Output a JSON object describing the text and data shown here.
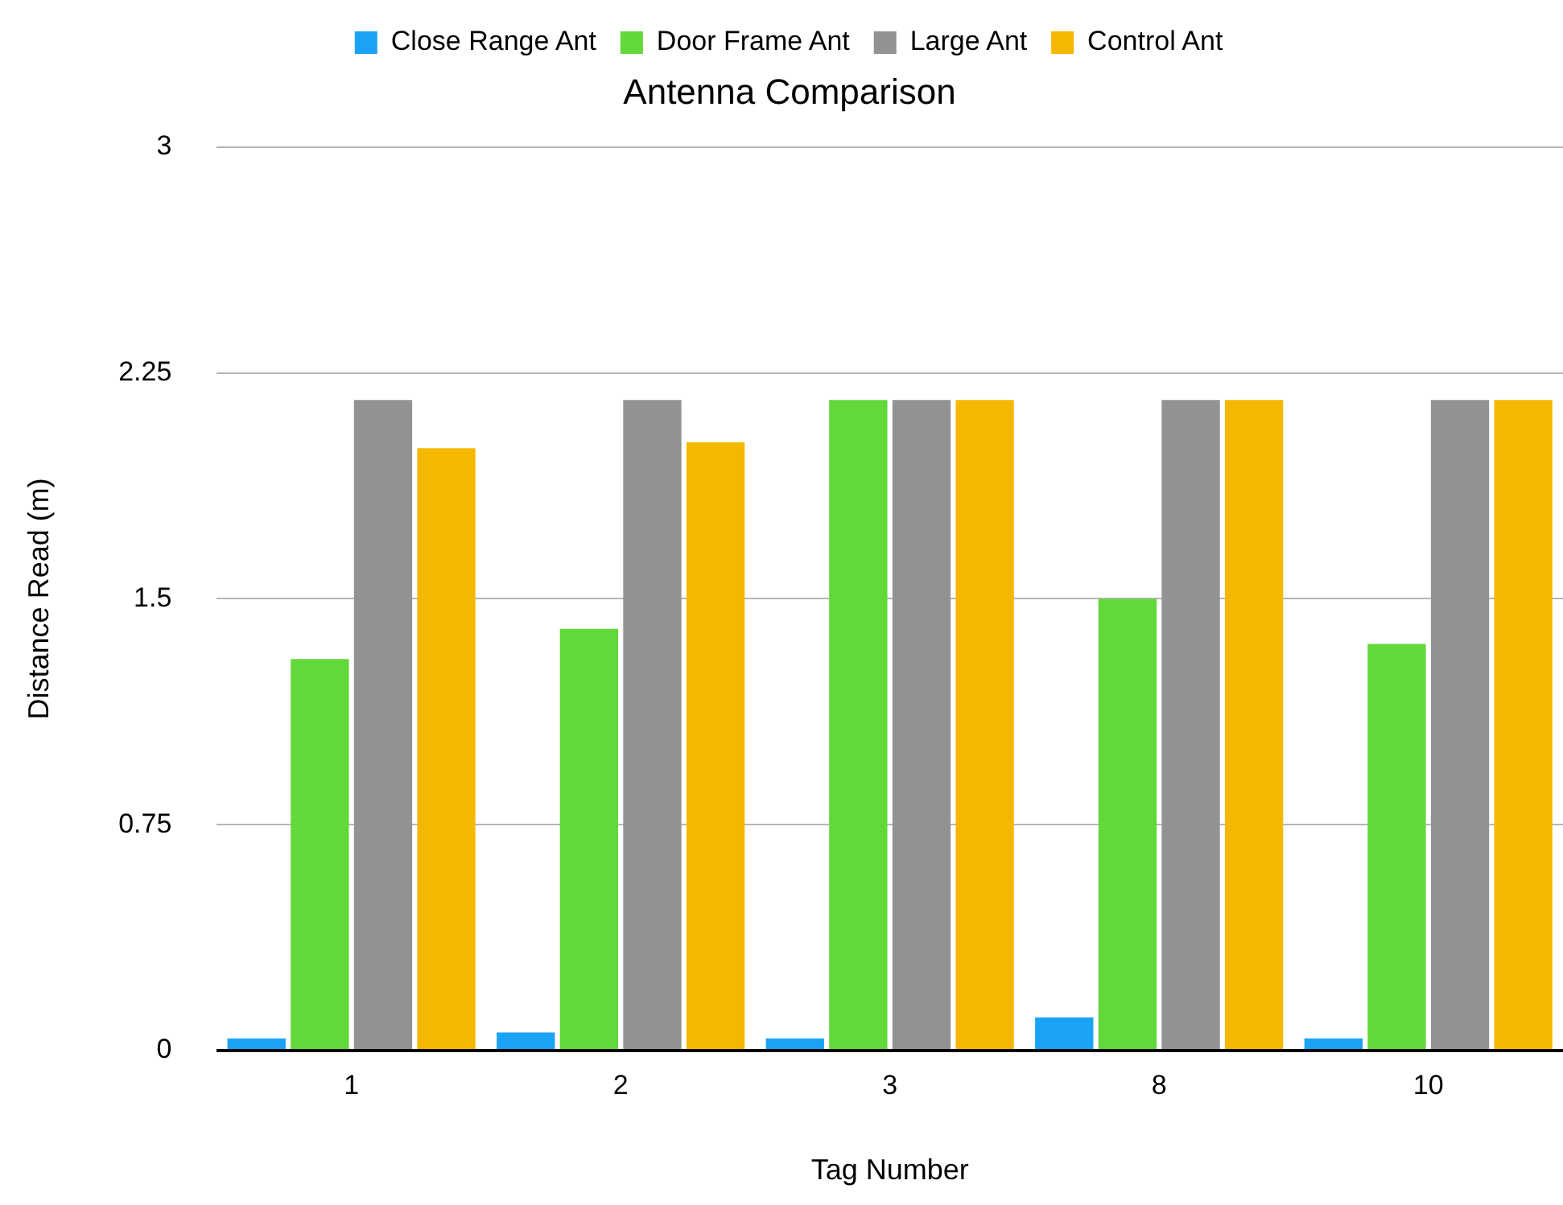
{
  "chart_data": {
    "type": "bar",
    "title": "Antenna Comparison",
    "xlabel": "Tag Number",
    "ylabel": "Distance Read (m)",
    "categories": [
      "1",
      "2",
      "3",
      "8",
      "10"
    ],
    "series": [
      {
        "name": "Close Range Ant",
        "color": "#1aa3f5",
        "values": [
          0.04,
          0.06,
          0.04,
          0.11,
          0.04
        ]
      },
      {
        "name": "Door Frame Ant",
        "color": "#62d83b",
        "values": [
          1.3,
          1.4,
          2.16,
          1.5,
          1.35
        ]
      },
      {
        "name": "Large Ant",
        "color": "#929292",
        "values": [
          2.16,
          2.16,
          2.16,
          2.16,
          2.16
        ]
      },
      {
        "name": "Control Ant",
        "color": "#f5b800",
        "values": [
          2.0,
          2.02,
          2.16,
          2.16,
          2.16
        ]
      }
    ],
    "ylim": [
      0,
      3
    ],
    "yticks": [
      0,
      0.75,
      1.5,
      2.25,
      3
    ],
    "grid": "y",
    "legend": "top"
  }
}
